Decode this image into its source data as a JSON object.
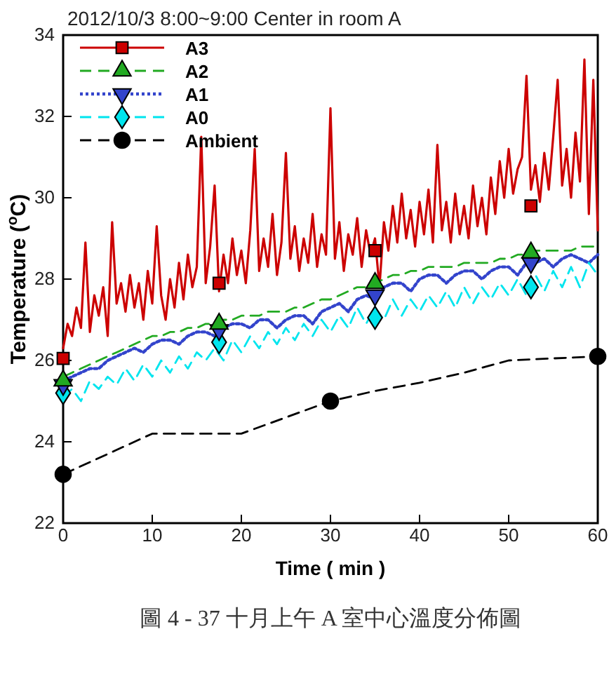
{
  "chart_data": {
    "type": "line",
    "title": "2012/10/3  8:00~9:00  Center in room A",
    "xlabel": "Time ( min )",
    "ylabel": "Temperature ($^{o}$C)",
    "annotations": [
      "圖 4 - 37 十月上午 A 室中心溫度分佈圖"
    ],
    "xlim": [
      0,
      60
    ],
    "ylim": [
      22,
      34
    ],
    "xticks": [
      0,
      10,
      20,
      30,
      40,
      50,
      60
    ],
    "yticks": [
      22,
      24,
      26,
      28,
      30,
      32,
      34
    ],
    "grid": false,
    "legend": "top left",
    "x": [
      0,
      1,
      2,
      3,
      4,
      5,
      6,
      7,
      8,
      9,
      10,
      11,
      12,
      13,
      14,
      15,
      16,
      17,
      18,
      19,
      20,
      21,
      22,
      23,
      24,
      25,
      26,
      27,
      28,
      29,
      30,
      31,
      32,
      33,
      34,
      35,
      36,
      37,
      38,
      39,
      40,
      41,
      42,
      43,
      44,
      45,
      46,
      47,
      48,
      49,
      50,
      51,
      52,
      53,
      54,
      55,
      56,
      57,
      58,
      59,
      60
    ],
    "series": [
      {
        "name": "A3",
        "color": "#cc0000",
        "line_style": "solid",
        "x": [
          0,
          0.5,
          1,
          1.5,
          2,
          2.5,
          3,
          3.5,
          4,
          4.5,
          5,
          5.5,
          6,
          6.5,
          7,
          7.5,
          8,
          8.5,
          9,
          9.5,
          10,
          10.5,
          11,
          11.5,
          12,
          12.5,
          13,
          13.5,
          14,
          14.5,
          15,
          15.5,
          16,
          16.5,
          17,
          17.5,
          18,
          18.5,
          19,
          19.5,
          20,
          20.5,
          21,
          21.5,
          22,
          22.5,
          23,
          23.5,
          24,
          24.5,
          25,
          25.5,
          26,
          26.5,
          27,
          27.5,
          28,
          28.5,
          29,
          29.5,
          30,
          30.5,
          31,
          31.5,
          32,
          32.5,
          33,
          33.5,
          34,
          34.5,
          35,
          35.5,
          36,
          36.5,
          37,
          37.5,
          38,
          38.5,
          39,
          39.5,
          40,
          40.5,
          41,
          41.5,
          42,
          42.5,
          43,
          43.5,
          44,
          44.5,
          45,
          45.5,
          46,
          46.5,
          47,
          47.5,
          48,
          48.5,
          49,
          49.5,
          50,
          50.5,
          51,
          51.5,
          52,
          52.5,
          53,
          53.5,
          54,
          54.5,
          55,
          55.5,
          56,
          56.5,
          57,
          57.5,
          58,
          58.5,
          59,
          59.5,
          60
        ],
        "values": [
          26.3,
          26.9,
          26.6,
          27.3,
          26.8,
          28.9,
          26.7,
          27.6,
          27.1,
          27.8,
          26.6,
          29.4,
          27.4,
          27.9,
          27.2,
          28.1,
          27.3,
          27.9,
          27.0,
          28.2,
          27.4,
          29.3,
          27.6,
          27.0,
          28.0,
          27.3,
          28.4,
          27.5,
          28.6,
          27.8,
          28.3,
          31.5,
          27.9,
          28.8,
          30.3,
          27.7,
          28.6,
          27.9,
          29.0,
          28.1,
          28.7,
          27.9,
          29.2,
          31.2,
          28.2,
          29.0,
          28.3,
          29.6,
          28.1,
          28.9,
          31.1,
          28.5,
          29.3,
          28.2,
          29.0,
          28.4,
          29.6,
          28.3,
          29.1,
          28.6,
          32.2,
          28.5,
          29.4,
          28.2,
          29.1,
          28.6,
          29.5,
          28.3,
          29.2,
          28.6,
          29.0,
          27.8,
          29.4,
          28.7,
          29.8,
          28.9,
          30.1,
          29.0,
          29.7,
          28.8,
          29.9,
          29.1,
          30.2,
          28.9,
          31.3,
          29.2,
          29.9,
          28.9,
          30.1,
          29.1,
          29.8,
          29.0,
          30.3,
          29.3,
          30.0,
          29.1,
          30.5,
          29.6,
          30.9,
          30.0,
          31.2,
          30.1,
          30.7,
          31.0,
          33.0,
          30.2,
          30.8,
          29.9,
          31.1,
          30.2,
          31.5,
          32.9,
          30.3,
          31.2,
          30.0,
          31.6,
          30.4,
          33.4,
          29.6,
          32.9,
          29.2
        ]
      },
      {
        "type": "scatter",
        "color": "#cc0000",
        "marker": "square",
        "x": [
          0,
          17.5,
          35,
          52.5
        ],
        "values": [
          26.05,
          27.9,
          28.7,
          29.8
        ]
      },
      {
        "name": "A2",
        "color": "#22aa22",
        "line_style": "dashed",
        "values": [
          25.6,
          25.7,
          25.8,
          25.9,
          26.0,
          26.1,
          26.2,
          26.3,
          26.4,
          26.5,
          26.6,
          26.6,
          26.7,
          26.7,
          26.8,
          26.8,
          26.9,
          26.9,
          27.0,
          27.0,
          27.1,
          27.1,
          27.1,
          27.2,
          27.2,
          27.2,
          27.3,
          27.3,
          27.4,
          27.5,
          27.5,
          27.6,
          27.7,
          27.8,
          27.8,
          27.9,
          28.0,
          28.1,
          28.1,
          28.2,
          28.2,
          28.3,
          28.3,
          28.3,
          28.3,
          28.4,
          28.4,
          28.4,
          28.4,
          28.5,
          28.5,
          28.6,
          28.6,
          28.7,
          28.7,
          28.7,
          28.7,
          28.7,
          28.8,
          28.8,
          28.8
        ]
      },
      {
        "type": "scatter",
        "color": "#22aa22",
        "marker": "triangle",
        "x": [
          0,
          17.5,
          35,
          52.5
        ],
        "values": [
          25.5,
          26.9,
          27.9,
          28.65
        ]
      },
      {
        "name": "A1",
        "color": "#3344cc",
        "line_style": "dotted",
        "values": [
          25.5,
          25.6,
          25.7,
          25.8,
          25.8,
          26.0,
          26.1,
          26.2,
          26.3,
          26.2,
          26.4,
          26.5,
          26.5,
          26.4,
          26.6,
          26.7,
          26.7,
          26.6,
          26.8,
          26.9,
          26.9,
          26.8,
          27.0,
          27.0,
          26.8,
          27.0,
          27.1,
          27.1,
          26.9,
          27.2,
          27.3,
          27.4,
          27.2,
          27.5,
          27.6,
          27.5,
          27.8,
          27.9,
          27.9,
          27.7,
          28.0,
          28.1,
          28.1,
          27.9,
          28.1,
          28.2,
          28.2,
          28.0,
          28.2,
          28.3,
          28.3,
          28.1,
          28.4,
          28.4,
          28.5,
          28.3,
          28.5,
          28.6,
          28.5,
          28.4,
          28.6
        ]
      },
      {
        "type": "scatter",
        "color": "#3344cc",
        "marker": "triangle-down",
        "x": [
          0,
          17.5,
          35,
          52.5
        ],
        "values": [
          25.4,
          26.75,
          27.6,
          28.4
        ]
      },
      {
        "name": "A0",
        "color": "#00e5ee",
        "line_style": "dashed",
        "values": [
          25.1,
          25.3,
          25.0,
          25.5,
          25.3,
          25.6,
          25.4,
          25.8,
          25.5,
          25.9,
          25.6,
          26.0,
          25.7,
          26.1,
          25.8,
          26.2,
          26.0,
          26.3,
          26.0,
          26.5,
          26.2,
          26.6,
          26.3,
          26.7,
          26.4,
          26.8,
          26.5,
          26.9,
          26.6,
          27.0,
          26.7,
          27.1,
          26.8,
          27.3,
          26.9,
          27.3,
          27.0,
          27.5,
          27.1,
          27.5,
          27.2,
          27.6,
          27.3,
          27.7,
          27.3,
          27.8,
          27.4,
          27.8,
          27.5,
          27.9,
          27.6,
          28.0,
          27.6,
          28.1,
          27.7,
          28.2,
          27.8,
          28.3,
          27.8,
          28.4,
          28.1
        ]
      },
      {
        "type": "scatter",
        "color": "#00e5ee",
        "marker": "diamond",
        "x": [
          0,
          17.5,
          35,
          52.5
        ],
        "values": [
          25.2,
          26.45,
          27.05,
          27.8
        ]
      },
      {
        "name": "Ambient",
        "color": "#000000",
        "line_style": "dashed",
        "x": [
          0,
          5,
          10,
          15,
          20,
          25,
          30,
          35,
          40,
          45,
          50,
          55,
          60
        ],
        "values": [
          23.2,
          23.7,
          24.2,
          24.2,
          24.2,
          24.6,
          25.0,
          25.25,
          25.45,
          25.7,
          26.0,
          26.05,
          26.1
        ]
      },
      {
        "type": "scatter",
        "color": "#000000",
        "marker": "circle",
        "x": [
          0,
          30,
          60
        ],
        "values": [
          23.2,
          25.0,
          26.1
        ]
      }
    ]
  }
}
